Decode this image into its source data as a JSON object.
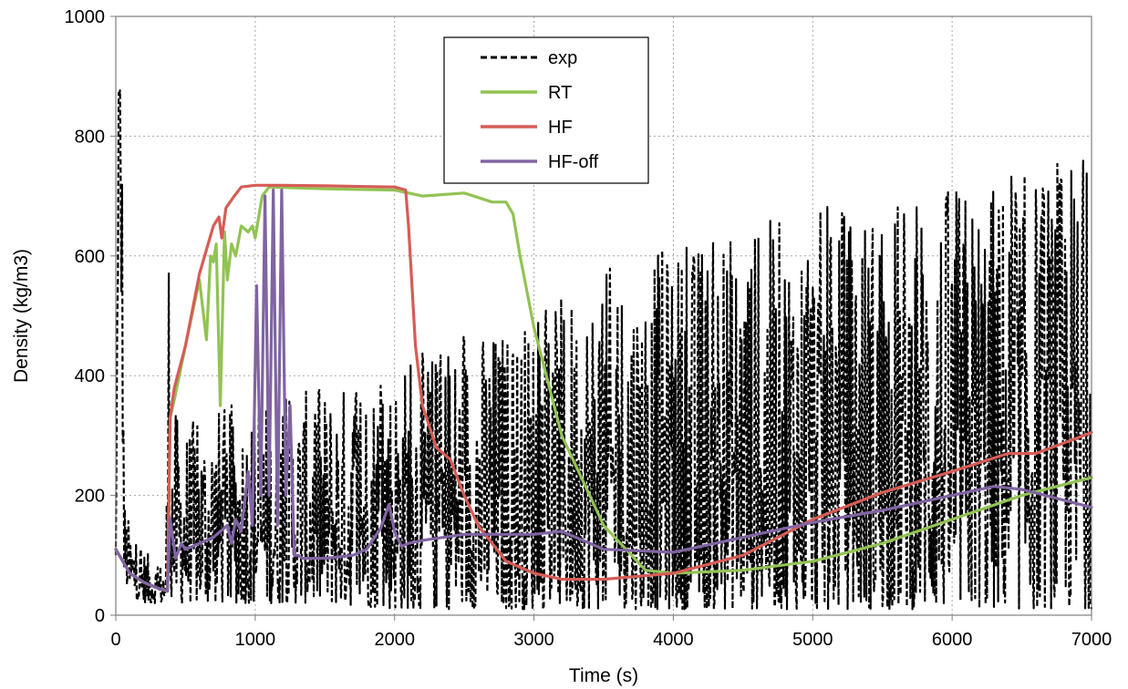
{
  "chart_data": {
    "type": "line",
    "title": "",
    "xlabel": "Time (s)",
    "ylabel": "Density (kg/m3)",
    "xlim": [
      0,
      7000
    ],
    "ylim": [
      0,
      1000
    ],
    "x_ticks": [
      0,
      1000,
      2000,
      3000,
      4000,
      5000,
      6000,
      7000
    ],
    "y_ticks": [
      0,
      200,
      400,
      600,
      800,
      1000
    ],
    "x_tick_labels": [
      "0",
      "1000",
      "2000",
      "3000",
      "4000",
      "5000",
      "6000",
      "7000"
    ],
    "y_tick_labels": [
      "0",
      "200",
      "400",
      "600",
      "800",
      "1000"
    ],
    "grid": true,
    "legend_position": "top-center",
    "series": [
      {
        "name": "exp",
        "color": "#000000",
        "style": "dashed",
        "kind": "noisy-envelope",
        "x": [
          0,
          20,
          40,
          60,
          100,
          200,
          300,
          360,
          380,
          400,
          500,
          700,
          1000,
          1500,
          2000,
          2500,
          3000,
          3500,
          4000,
          4500,
          5000,
          5500,
          6000,
          6500,
          7000
        ],
        "lower": [
          80,
          700,
          500,
          60,
          30,
          20,
          20,
          20,
          100,
          20,
          20,
          20,
          20,
          20,
          10,
          10,
          10,
          10,
          10,
          10,
          10,
          10,
          10,
          10,
          10
        ],
        "upper": [
          120,
          1000,
          1000,
          200,
          150,
          110,
          90,
          90,
          670,
          350,
          320,
          350,
          360,
          380,
          420,
          470,
          500,
          580,
          620,
          650,
          680,
          700,
          720,
          740,
          790
        ]
      },
      {
        "name": "RT",
        "color": "#92c353",
        "style": "solid",
        "x": [
          0,
          100,
          200,
          300,
          370,
          390,
          420,
          500,
          600,
          650,
          680,
          700,
          720,
          750,
          780,
          800,
          830,
          860,
          900,
          950,
          980,
          1000,
          1050,
          1100,
          1500,
          2000,
          2200,
          2500,
          2700,
          2800,
          2850,
          2900,
          3000,
          3200,
          3500,
          3800,
          4000,
          4500,
          5000,
          5500,
          6000,
          6500,
          7000
        ],
        "y": [
          110,
          70,
          55,
          45,
          40,
          330,
          360,
          450,
          560,
          460,
          600,
          590,
          620,
          350,
          640,
          560,
          620,
          600,
          650,
          640,
          650,
          630,
          700,
          715,
          712,
          710,
          700,
          705,
          690,
          690,
          670,
          600,
          480,
          300,
          150,
          75,
          70,
          75,
          90,
          120,
          160,
          200,
          230
        ]
      },
      {
        "name": "HF",
        "color": "#d65c56",
        "style": "solid",
        "x": [
          0,
          100,
          200,
          300,
          370,
          390,
          420,
          500,
          600,
          700,
          740,
          760,
          790,
          850,
          900,
          1000,
          1200,
          1500,
          2000,
          2080,
          2100,
          2150,
          2200,
          2300,
          2400,
          2500,
          2600,
          2800,
          3000,
          3200,
          3500,
          4000,
          4500,
          5000,
          5500,
          6000,
          6400,
          6600,
          7000
        ],
        "y": [
          110,
          70,
          55,
          45,
          40,
          330,
          380,
          450,
          570,
          650,
          665,
          630,
          680,
          700,
          715,
          718,
          718,
          717,
          715,
          710,
          650,
          450,
          350,
          280,
          260,
          200,
          150,
          90,
          70,
          60,
          60,
          70,
          100,
          160,
          205,
          240,
          270,
          270,
          305
        ]
      },
      {
        "name": "HF-off",
        "color": "#8064a2",
        "style": "solid",
        "x": [
          0,
          100,
          200,
          300,
          370,
          390,
          430,
          470,
          500,
          600,
          700,
          800,
          830,
          860,
          900,
          950,
          980,
          1010,
          1040,
          1070,
          1100,
          1130,
          1160,
          1190,
          1220,
          1250,
          1280,
          1310,
          1340,
          1380,
          1500,
          1700,
          1800,
          1900,
          1960,
          2000,
          2050,
          2100,
          2200,
          2500,
          3000,
          3200,
          3500,
          4000,
          4500,
          5000,
          5500,
          6000,
          6300,
          6500,
          7000
        ],
        "y": [
          110,
          70,
          55,
          45,
          40,
          160,
          95,
          120,
          110,
          120,
          130,
          150,
          120,
          160,
          140,
          240,
          150,
          550,
          200,
          700,
          200,
          710,
          150,
          710,
          200,
          350,
          100,
          100,
          95,
          95,
          95,
          100,
          110,
          145,
          185,
          140,
          115,
          120,
          125,
          135,
          135,
          140,
          110,
          105,
          130,
          155,
          175,
          200,
          215,
          210,
          180
        ]
      }
    ]
  }
}
